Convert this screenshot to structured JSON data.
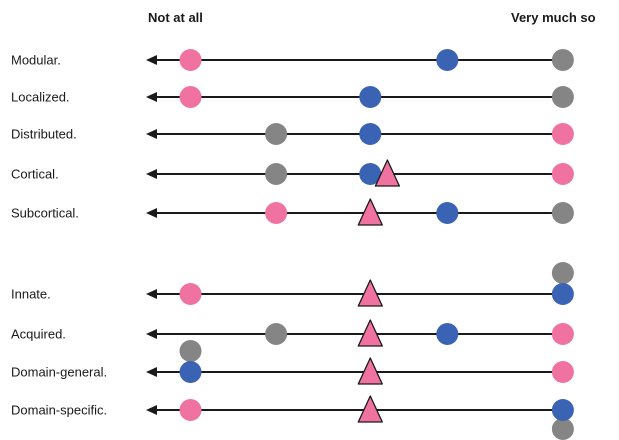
{
  "header": {
    "left_label": "Not at all",
    "right_label": "Very much so"
  },
  "colors": {
    "pink": "#ef72a1",
    "blue": "#3a63b4",
    "gray": "#858585",
    "line": "#1a1a1a",
    "triangle_stroke": "#1a1a1a"
  },
  "scale_note": "positions on a 0-100 scale from Not at all (0) to Very much so (100)",
  "rows": [
    {
      "label": "Modular.",
      "markers": [
        {
          "shape": "circle",
          "color": "pink",
          "position": 9
        },
        {
          "shape": "circle",
          "color": "blue",
          "position": 69
        },
        {
          "shape": "circle",
          "color": "gray",
          "position": 96
        }
      ]
    },
    {
      "label": "Localized.",
      "markers": [
        {
          "shape": "circle",
          "color": "pink",
          "position": 9
        },
        {
          "shape": "circle",
          "color": "blue",
          "position": 51
        },
        {
          "shape": "circle",
          "color": "gray",
          "position": 96
        }
      ]
    },
    {
      "label": "Distributed.",
      "markers": [
        {
          "shape": "circle",
          "color": "gray",
          "position": 29
        },
        {
          "shape": "circle",
          "color": "blue",
          "position": 51
        },
        {
          "shape": "circle",
          "color": "pink",
          "position": 96
        }
      ]
    },
    {
      "label": "Cortical.",
      "markers": [
        {
          "shape": "circle",
          "color": "gray",
          "position": 29
        },
        {
          "shape": "circle",
          "color": "blue",
          "position": 51
        },
        {
          "shape": "triangle",
          "color": "pink",
          "position": 55
        },
        {
          "shape": "circle",
          "color": "pink",
          "position": 96
        }
      ]
    },
    {
      "label": "Subcortical.",
      "markers": [
        {
          "shape": "circle",
          "color": "pink",
          "position": 29
        },
        {
          "shape": "triangle",
          "color": "pink",
          "position": 51
        },
        {
          "shape": "circle",
          "color": "blue",
          "position": 69
        },
        {
          "shape": "circle",
          "color": "gray",
          "position": 96
        }
      ]
    },
    {
      "label": "Innate.",
      "group_gap_before": true,
      "markers": [
        {
          "shape": "circle",
          "color": "pink",
          "position": 9
        },
        {
          "shape": "triangle",
          "color": "pink",
          "position": 51
        },
        {
          "shape": "circle",
          "color": "gray",
          "position": 96,
          "stack": "above"
        },
        {
          "shape": "circle",
          "color": "blue",
          "position": 96
        }
      ]
    },
    {
      "label": "Acquired.",
      "markers": [
        {
          "shape": "circle",
          "color": "gray",
          "position": 29
        },
        {
          "shape": "triangle",
          "color": "pink",
          "position": 51
        },
        {
          "shape": "circle",
          "color": "blue",
          "position": 69
        },
        {
          "shape": "circle",
          "color": "pink",
          "position": 96
        }
      ]
    },
    {
      "label": "Domain-general.",
      "markers": [
        {
          "shape": "circle",
          "color": "gray",
          "position": 9,
          "stack": "above"
        },
        {
          "shape": "circle",
          "color": "blue",
          "position": 9
        },
        {
          "shape": "triangle",
          "color": "pink",
          "position": 51
        },
        {
          "shape": "circle",
          "color": "pink",
          "position": 96
        }
      ]
    },
    {
      "label": "Domain-specific.",
      "markers": [
        {
          "shape": "circle",
          "color": "pink",
          "position": 9
        },
        {
          "shape": "triangle",
          "color": "pink",
          "position": 51
        },
        {
          "shape": "circle",
          "color": "gray",
          "position": 96,
          "stack": "below"
        },
        {
          "shape": "circle",
          "color": "blue",
          "position": 96
        }
      ]
    }
  ]
}
